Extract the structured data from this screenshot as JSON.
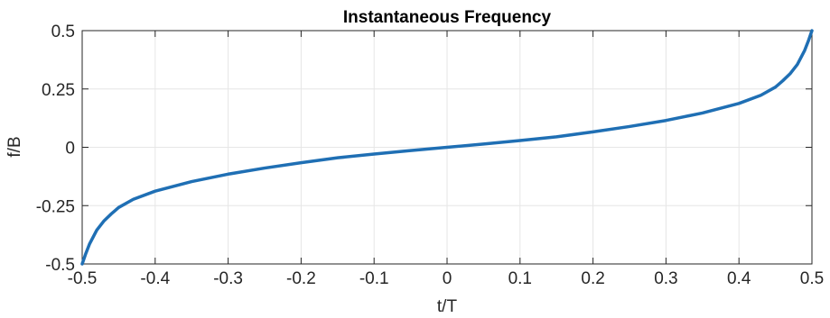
{
  "chart_data": {
    "type": "line",
    "title": "Instantaneous Frequency",
    "xlabel": "t/T",
    "ylabel": "f/B",
    "xlim": [
      -0.5,
      0.5
    ],
    "ylim": [
      -0.5,
      0.5
    ],
    "xticks": [
      -0.5,
      -0.4,
      -0.3,
      -0.2,
      -0.1,
      0,
      0.1,
      0.2,
      0.3,
      0.4,
      0.5
    ],
    "xtick_labels": [
      "-0.5",
      "-0.4",
      "-0.3",
      "-0.2",
      "-0.1",
      "0",
      "0.1",
      "0.2",
      "0.3",
      "0.4",
      "0.5"
    ],
    "yticks": [
      -0.5,
      -0.25,
      0,
      0.25,
      0.5
    ],
    "ytick_labels": [
      "-0.5",
      "-0.25",
      "0",
      "0.25",
      "0.5"
    ],
    "grid": true,
    "series": [
      {
        "color": "#1f6fb4",
        "x": [
          -0.5,
          -0.495,
          -0.49,
          -0.48,
          -0.47,
          -0.46,
          -0.45,
          -0.43,
          -0.4,
          -0.35,
          -0.3,
          -0.25,
          -0.2,
          -0.15,
          -0.1,
          -0.05,
          0,
          0.05,
          0.1,
          0.15,
          0.2,
          0.25,
          0.3,
          0.35,
          0.4,
          0.43,
          0.45,
          0.46,
          0.47,
          0.48,
          0.49,
          0.495,
          0.5
        ],
        "y": [
          -0.5,
          -0.455,
          -0.415,
          -0.355,
          -0.315,
          -0.285,
          -0.258,
          -0.223,
          -0.188,
          -0.147,
          -0.115,
          -0.089,
          -0.066,
          -0.045,
          -0.029,
          -0.014,
          0,
          0.014,
          0.029,
          0.045,
          0.066,
          0.089,
          0.115,
          0.147,
          0.188,
          0.223,
          0.258,
          0.285,
          0.315,
          0.355,
          0.415,
          0.455,
          0.5
        ]
      }
    ]
  }
}
